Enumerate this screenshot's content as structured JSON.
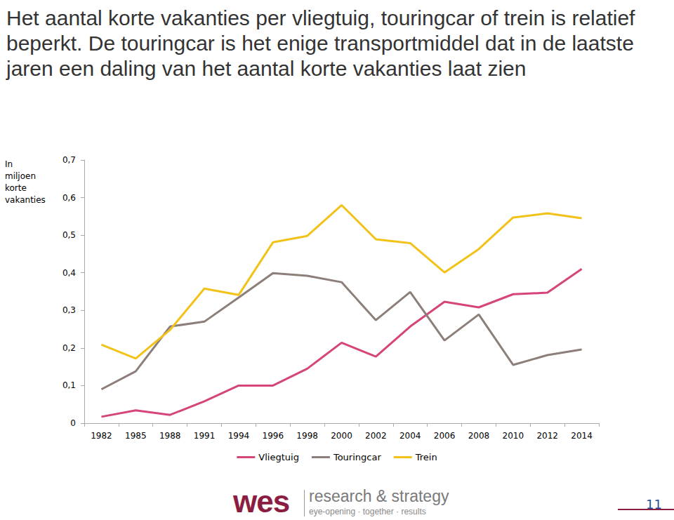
{
  "chart_data": {
    "type": "line",
    "title": "Het aantal korte vakanties per vliegtuig, touringcar of trein is relatief beperkt. De touringcar is het enige transportmiddel dat in de laatste jaren een daling van het aantal korte vakanties laat zien",
    "y_label": "In miljoen korte vakanties",
    "categories": [
      "1982",
      "1985",
      "1988",
      "1991",
      "1994",
      "1996",
      "1998",
      "2000",
      "2002",
      "2004",
      "2006",
      "2008",
      "2010",
      "2012",
      "2014"
    ],
    "series": [
      {
        "name": "Vliegtuig",
        "color": "#d6457a",
        "values": [
          0.017,
          0.034,
          0.022,
          0.058,
          0.1,
          0.1,
          0.145,
          0.214,
          0.177,
          0.257,
          0.323,
          0.308,
          0.343,
          0.347,
          0.41
        ]
      },
      {
        "name": "Touringcar",
        "color": "#8c7f7a",
        "values": [
          0.09,
          0.138,
          0.257,
          0.27,
          0.334,
          0.399,
          0.392,
          0.375,
          0.274,
          0.349,
          0.22,
          0.289,
          0.155,
          0.181,
          0.196
        ]
      },
      {
        "name": "Trein",
        "color": "#f2c218",
        "values": [
          0.209,
          0.172,
          0.248,
          0.358,
          0.341,
          0.481,
          0.498,
          0.58,
          0.489,
          0.479,
          0.401,
          0.463,
          0.547,
          0.558,
          0.545
        ]
      }
    ],
    "ylim": [
      0,
      0.7
    ],
    "yticks": [
      0,
      {
        "value": 0.1,
        "label": "0,1"
      },
      {
        "value": 0.2,
        "label": "0,2"
      },
      {
        "value": 0.3,
        "label": "0,3"
      },
      {
        "value": 0.4,
        "label": "0,4"
      },
      {
        "value": 0.5,
        "label": "0,5"
      },
      {
        "value": 0.6,
        "label": "0,6"
      },
      {
        "value": 0.7,
        "label": "0,7"
      }
    ],
    "grid": false,
    "legend": "bottom"
  },
  "footer": {
    "logo": "wes",
    "tagline": "research & strategy",
    "slogan": "eye-opening · together · results",
    "page": "11"
  }
}
